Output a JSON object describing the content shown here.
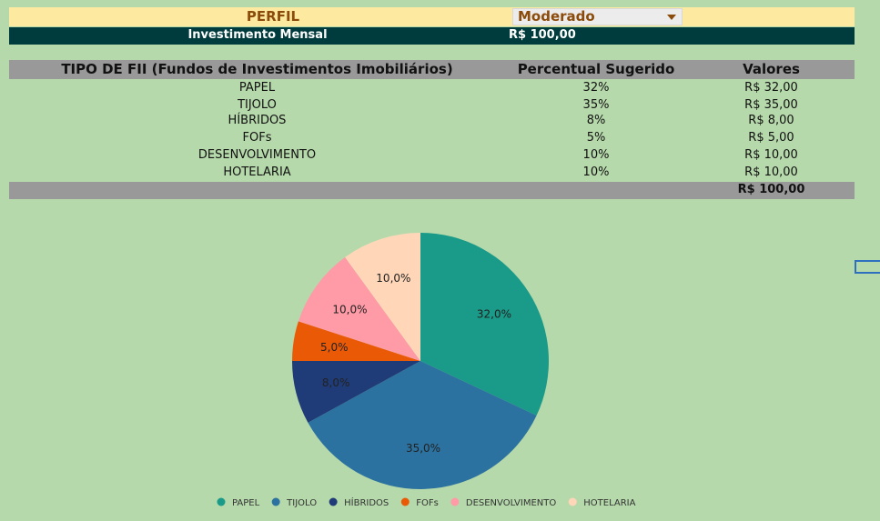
{
  "perfil": {
    "label": "PERFIL",
    "selected": "Moderado"
  },
  "investimento": {
    "label": "Investimento Mensal",
    "value": "R$ 100,00"
  },
  "table": {
    "headers": [
      "TIPO DE FII (Fundos de Investimentos Imobiliários)",
      "Percentual Sugerido",
      "Valores"
    ],
    "rows": [
      {
        "tipo": "PAPEL",
        "percentual": "32%",
        "valor": "R$ 32,00"
      },
      {
        "tipo": "TIJOLO",
        "percentual": "35%",
        "valor": "R$ 35,00"
      },
      {
        "tipo": "HÍBRIDOS",
        "percentual": "8%",
        "valor": "R$ 8,00"
      },
      {
        "tipo": "FOFs",
        "percentual": "5%",
        "valor": "R$ 5,00"
      },
      {
        "tipo": "DESENVOLVIMENTO",
        "percentual": "10%",
        "valor": "R$ 10,00"
      },
      {
        "tipo": "HOTELARIA",
        "percentual": "10%",
        "valor": "R$ 10,00"
      }
    ],
    "total": "R$ 100,00"
  },
  "chart_data": {
    "type": "pie",
    "title": "",
    "legend_position": "bottom",
    "slices": [
      {
        "name": "PAPEL",
        "value": 32,
        "label": "32,0%",
        "color": "#1a9a88"
      },
      {
        "name": "TIJOLO",
        "value": 35,
        "label": "35,0%",
        "color": "#2c72a0"
      },
      {
        "name": "HÍBRIDOS",
        "value": 8,
        "label": "8,0%",
        "color": "#1f3c78"
      },
      {
        "name": "FOFs",
        "value": 5,
        "label": "5,0%",
        "color": "#ea5a06"
      },
      {
        "name": "DESENVOLVIMENTO",
        "value": 10,
        "label": "10,0%",
        "color": "#ff9aa7"
      },
      {
        "name": "HOTELARIA",
        "value": 10,
        "label": "10,0%",
        "color": "#ffd7b8"
      }
    ]
  }
}
